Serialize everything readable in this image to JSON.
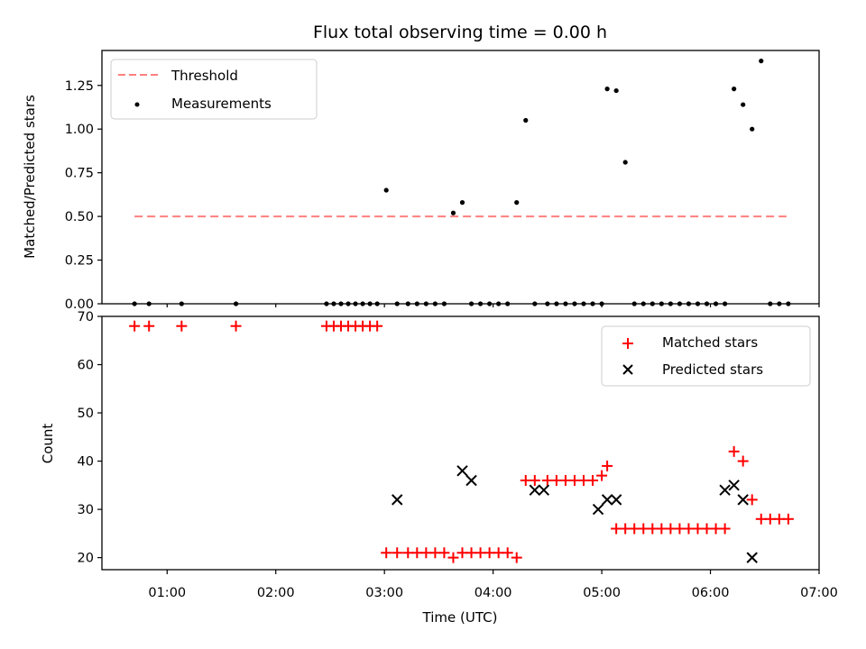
{
  "title": "Flux total observing time = 0.00 h",
  "chart_data": [
    {
      "type": "scatter",
      "ylabel": "Matched/Predicted stars",
      "ylim": [
        0,
        1.45
      ],
      "xlim": [
        "00:24",
        "07:00"
      ],
      "yticks": [
        "0.00",
        "0.25",
        "0.50",
        "0.75",
        "1.00",
        "1.25"
      ],
      "ytick_values": [
        0,
        0.25,
        0.5,
        0.75,
        1.0,
        1.25
      ],
      "legend_position": "upper-left",
      "legend": [
        "Threshold",
        "Measurements"
      ],
      "threshold": {
        "name": "Threshold",
        "value": 0.5,
        "x_start": "00:42",
        "x_end": "06:42",
        "color": "#ff7f7f"
      },
      "measurements": {
        "name": "Measurements",
        "color": "#000000",
        "x": [
          "00:42",
          "00:50",
          "01:08",
          "01:38",
          "02:28",
          "02:32",
          "02:36",
          "02:40",
          "02:44",
          "02:48",
          "02:52",
          "02:56",
          "03:01",
          "03:07",
          "03:13",
          "03:18",
          "03:23",
          "03:28",
          "03:33",
          "03:38",
          "03:43",
          "03:48",
          "03:53",
          "03:58",
          "04:03",
          "04:08",
          "04:13",
          "04:18",
          "04:23",
          "04:30",
          "04:35",
          "04:40",
          "04:45",
          "04:50",
          "04:55",
          "05:00",
          "05:03",
          "05:08",
          "05:13",
          "05:18",
          "05:23",
          "05:28",
          "05:33",
          "05:38",
          "05:43",
          "05:48",
          "05:53",
          "05:58",
          "06:03",
          "06:08",
          "06:13",
          "06:18",
          "06:23",
          "06:28",
          "06:33",
          "06:38",
          "06:43"
        ],
        "y": [
          0,
          0,
          0,
          0,
          0,
          0,
          0,
          0,
          0,
          0,
          0,
          0,
          0.65,
          0,
          0,
          0,
          0,
          0,
          0,
          0.52,
          0.58,
          0,
          0,
          0,
          0,
          0,
          0.58,
          1.05,
          0,
          0,
          0,
          0,
          0,
          0,
          0,
          0,
          1.23,
          1.22,
          0.81,
          0,
          0,
          0,
          0,
          0,
          0,
          0,
          0,
          0,
          0,
          0,
          1.23,
          1.14,
          1.0,
          1.39,
          0,
          0,
          0
        ]
      }
    },
    {
      "type": "scatter",
      "xlabel": "Time (UTC)",
      "ylabel": "Count",
      "ylim": [
        17.5,
        70
      ],
      "xlim": [
        "00:24",
        "07:00"
      ],
      "xticks": [
        "01:00",
        "02:00",
        "03:00",
        "04:00",
        "05:00",
        "06:00",
        "07:00"
      ],
      "yticks": [
        "20",
        "30",
        "40",
        "50",
        "60",
        "70"
      ],
      "ytick_values": [
        20,
        30,
        40,
        50,
        60,
        70
      ],
      "legend_position": "upper-right",
      "series": [
        {
          "name": "Matched stars",
          "marker": "plus",
          "color": "#ff0000",
          "x": [
            "00:42",
            "00:50",
            "01:08",
            "01:38",
            "02:28",
            "02:32",
            "02:36",
            "02:40",
            "02:44",
            "02:48",
            "02:52",
            "02:56",
            "03:01",
            "03:07",
            "03:13",
            "03:18",
            "03:23",
            "03:28",
            "03:33",
            "03:38",
            "03:43",
            "03:48",
            "03:53",
            "03:58",
            "04:03",
            "04:08",
            "04:13",
            "04:18",
            "04:23",
            "04:30",
            "04:35",
            "04:40",
            "04:45",
            "04:50",
            "04:55",
            "05:00",
            "05:03",
            "05:08",
            "05:13",
            "05:18",
            "05:23",
            "05:28",
            "05:33",
            "05:38",
            "05:43",
            "05:48",
            "05:53",
            "05:58",
            "06:03",
            "06:08",
            "06:13",
            "06:18",
            "06:23",
            "06:28",
            "06:33",
            "06:38",
            "06:43"
          ],
          "y": [
            68,
            68,
            68,
            68,
            68,
            68,
            68,
            68,
            68,
            68,
            68,
            68,
            21,
            21,
            21,
            21,
            21,
            21,
            21,
            20,
            21,
            21,
            21,
            21,
            21,
            21,
            20,
            36,
            36,
            36,
            36,
            36,
            36,
            36,
            36,
            37,
            39,
            26,
            26,
            26,
            26,
            26,
            26,
            26,
            26,
            26,
            26,
            26,
            26,
            26,
            42,
            40,
            32,
            28,
            28,
            28,
            28
          ]
        },
        {
          "name": "Predicted stars",
          "marker": "x",
          "color": "#000000",
          "x": [
            "03:07",
            "03:43",
            "03:48",
            "04:23",
            "04:28",
            "04:58",
            "05:03",
            "05:08",
            "06:08",
            "06:13",
            "06:18",
            "06:23"
          ],
          "y": [
            32,
            38,
            36,
            34,
            34,
            30,
            32,
            32,
            34,
            35,
            32,
            20
          ]
        }
      ]
    }
  ]
}
